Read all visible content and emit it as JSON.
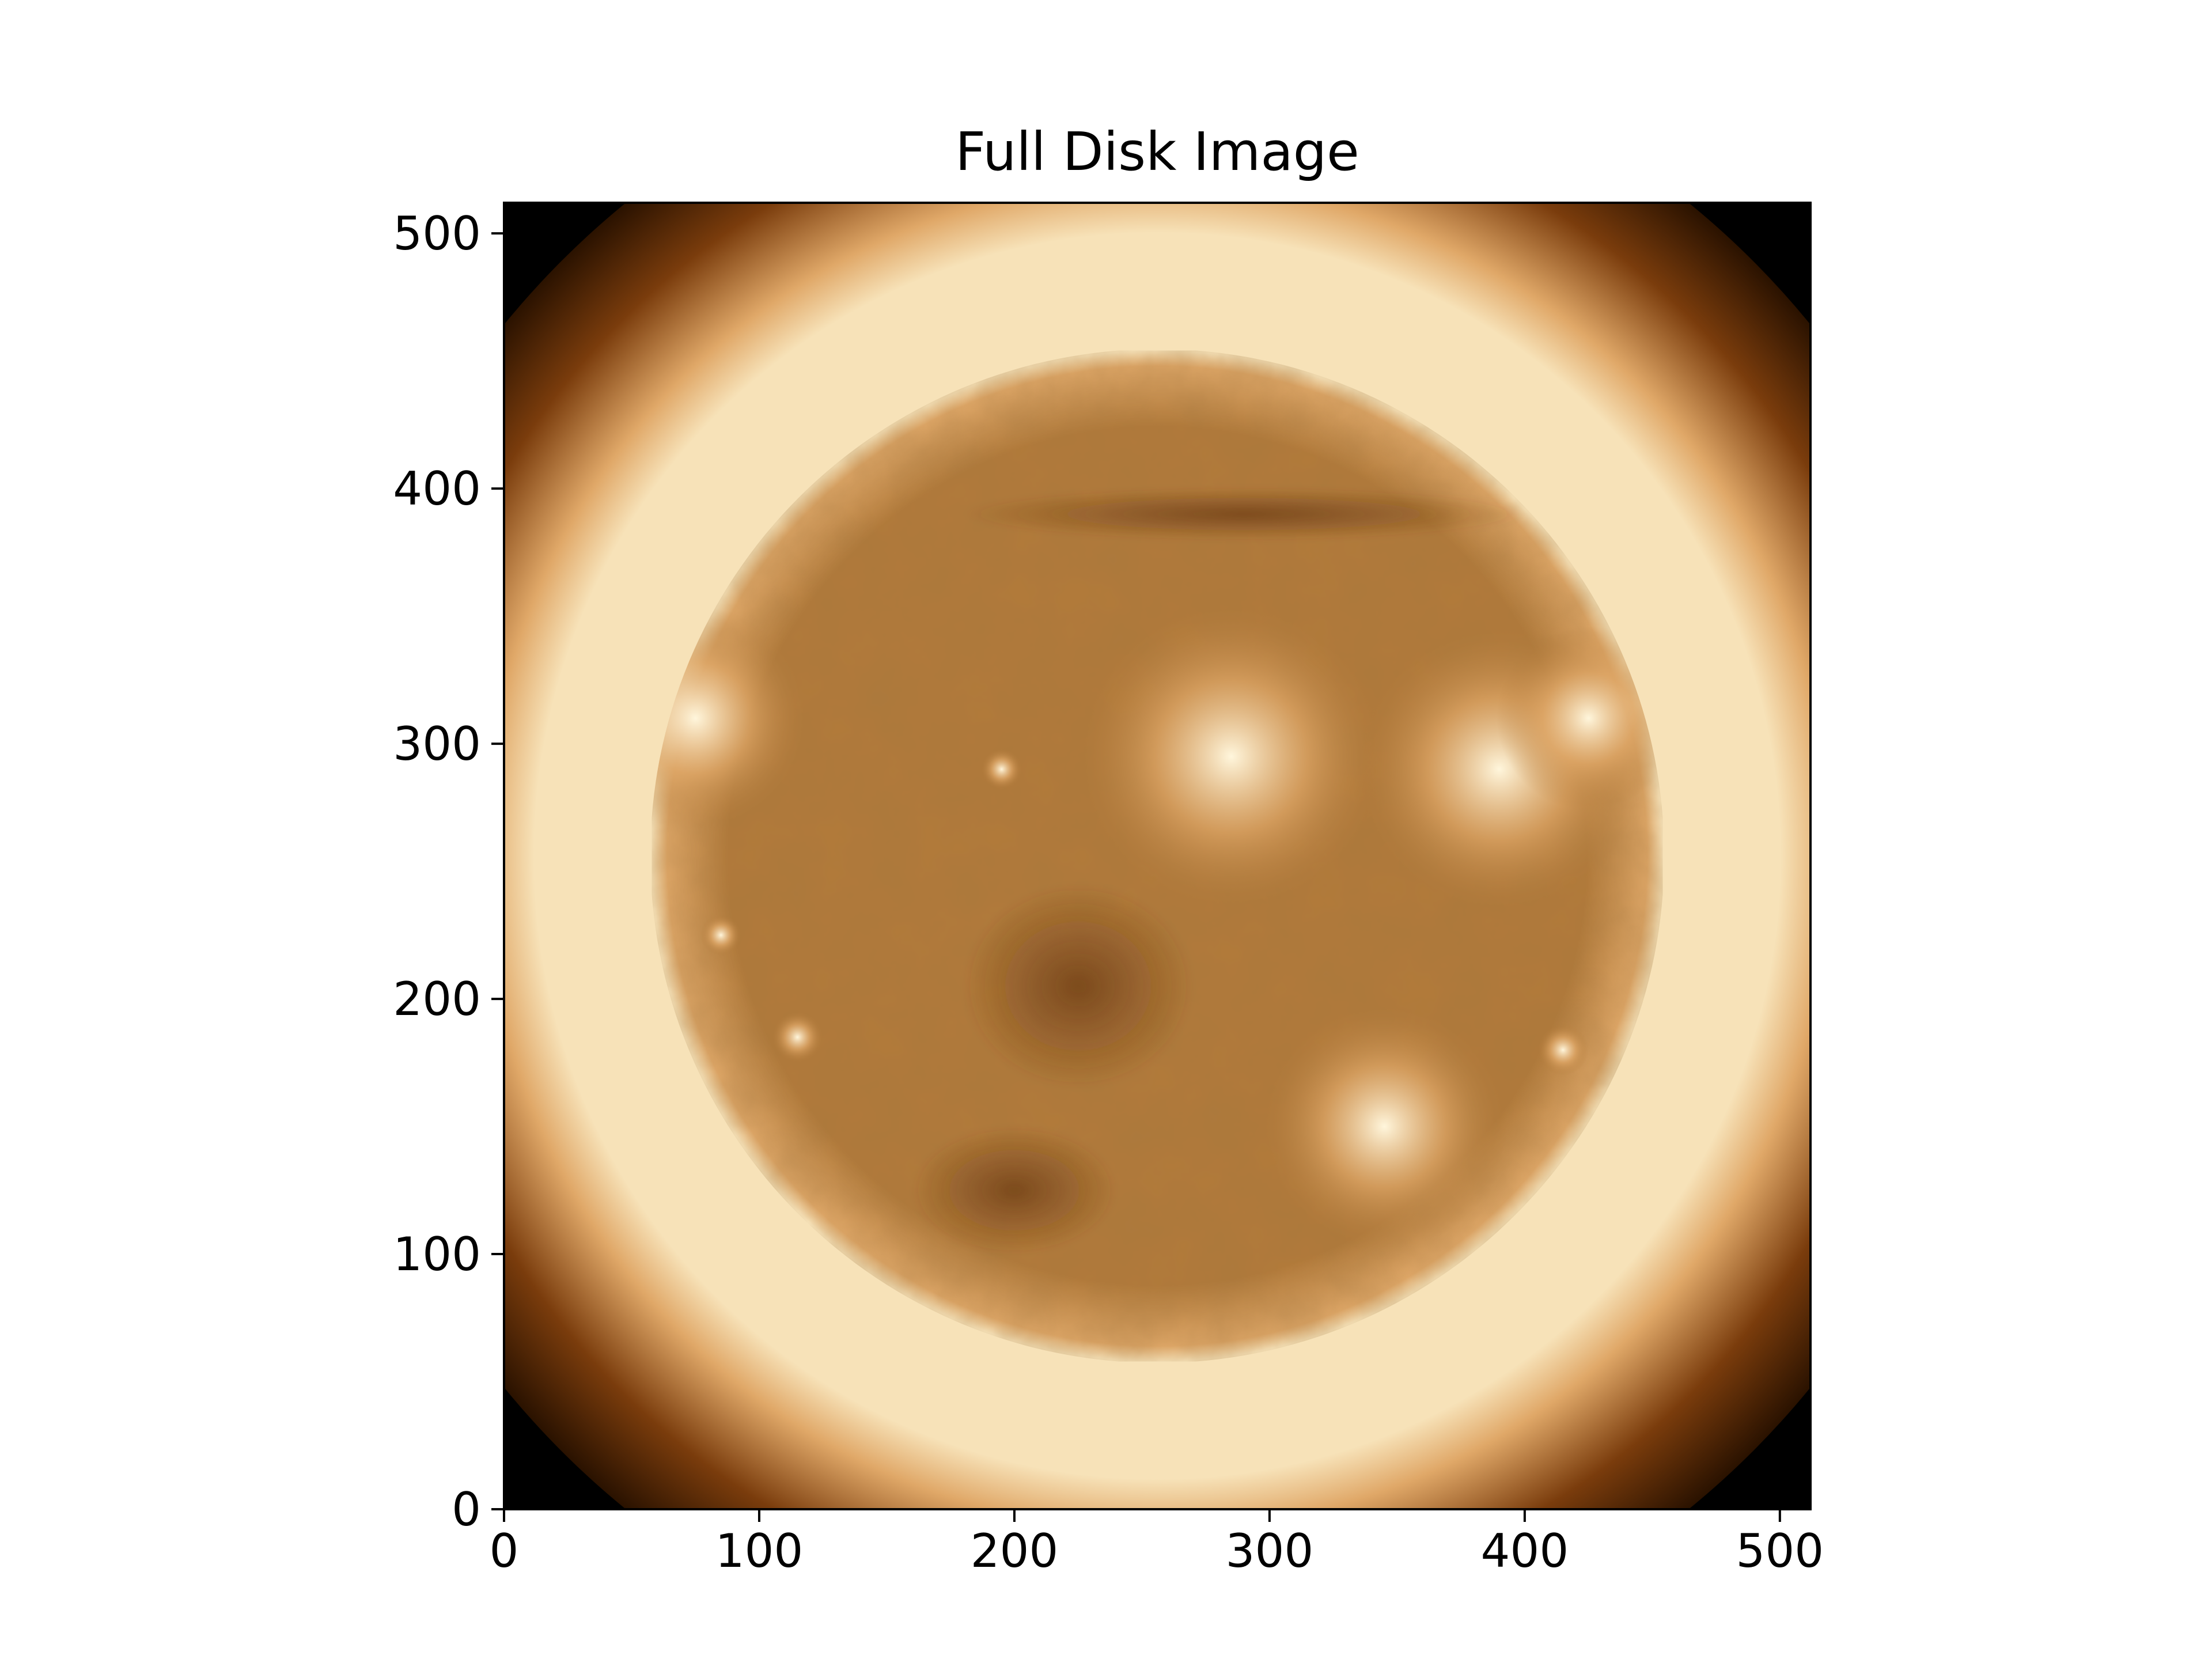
{
  "title": "Full Disk Image",
  "colors": {
    "background": "#000000",
    "corona_outer": "#2a1200",
    "corona_mid": "#7a3c0c",
    "corona_inner": "#e0a868",
    "limb": "#f7e2b8",
    "disk_base": "#b27a3a",
    "disk_dark": "#6b3a14",
    "active_bright": "#fff6dc"
  },
  "image_extent": {
    "x": [
      0,
      512
    ],
    "y": [
      0,
      512
    ]
  },
  "features": [
    {
      "name": "active-region-east-limb",
      "x": 75,
      "y": 310,
      "r": 22
    },
    {
      "name": "active-region-center",
      "x": 285,
      "y": 295,
      "r": 30
    },
    {
      "name": "active-region-west",
      "x": 390,
      "y": 290,
      "r": 28
    },
    {
      "name": "active-region-west-limb",
      "x": 425,
      "y": 310,
      "r": 18
    },
    {
      "name": "active-region-south-east",
      "x": 345,
      "y": 150,
      "r": 24
    },
    {
      "name": "bright-point-a",
      "x": 115,
      "y": 185,
      "r": 5
    },
    {
      "name": "bright-point-b",
      "x": 85,
      "y": 225,
      "r": 4
    },
    {
      "name": "bright-point-c",
      "x": 195,
      "y": 290,
      "r": 4
    },
    {
      "name": "bright-point-d",
      "x": 415,
      "y": 180,
      "r": 5
    }
  ],
  "dark_regions": [
    {
      "name": "coronal-hole-center",
      "x": 225,
      "y": 205,
      "rx": 45,
      "ry": 40
    },
    {
      "name": "filament-north",
      "x": 290,
      "y": 390,
      "rx": 110,
      "ry": 10
    },
    {
      "name": "dark-channel-south",
      "x": 200,
      "y": 125,
      "rx": 40,
      "ry": 25
    }
  ],
  "axes": {
    "x_ticks": [
      "0",
      "100",
      "200",
      "300",
      "400",
      "500"
    ],
    "y_ticks": [
      "0",
      "100",
      "200",
      "300",
      "400",
      "500"
    ],
    "x_tick_values": [
      0,
      100,
      200,
      300,
      400,
      500
    ],
    "y_tick_values": [
      0,
      100,
      200,
      300,
      400,
      500
    ]
  }
}
